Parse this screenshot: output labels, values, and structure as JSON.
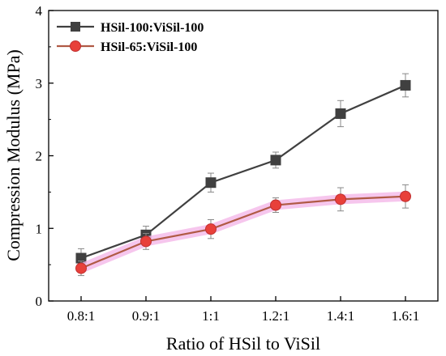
{
  "chart_data": {
    "type": "line",
    "categories": [
      "0.8:1",
      "0.9:1",
      "1:1",
      "1.2:1",
      "1.4:1",
      "1.6:1"
    ],
    "xlabel": "Ratio of HSil to ViSil",
    "ylabel": "Compression Modulus (MPa)",
    "ylim": [
      0,
      4
    ],
    "yticks": [
      "0",
      "1",
      "2",
      "3",
      "4"
    ],
    "grid": false,
    "legend_position": "top-left",
    "series": [
      {
        "name": "HSil-100:ViSil-100",
        "values": [
          0.59,
          0.91,
          1.63,
          1.94,
          2.58,
          2.97
        ],
        "errors": [
          0.13,
          0.12,
          0.13,
          0.11,
          0.18,
          0.16
        ],
        "color": "#404040",
        "marker": "square"
      },
      {
        "name": "HSil-65:ViSil-100",
        "values": [
          0.45,
          0.82,
          0.99,
          1.32,
          1.4,
          1.44
        ],
        "errors": [
          0.1,
          0.11,
          0.13,
          0.1,
          0.16,
          0.16
        ],
        "color": "#e8403a",
        "line_color": "#b05a45",
        "band_color": "#f4b8e8",
        "marker": "circle"
      }
    ]
  }
}
